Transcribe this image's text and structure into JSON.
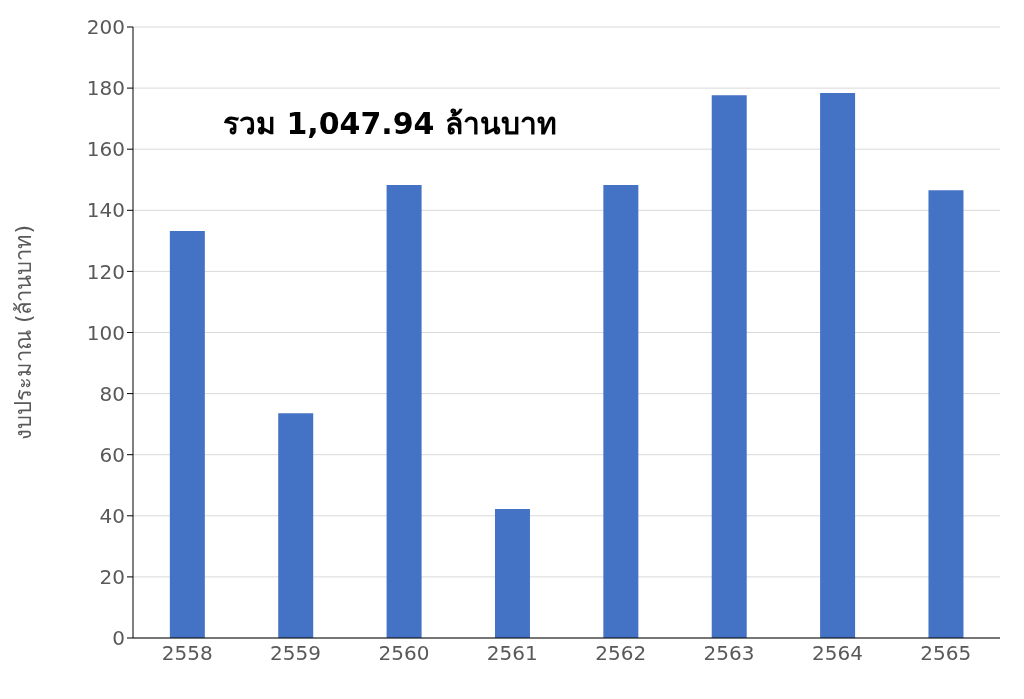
{
  "chart_data": {
    "type": "bar",
    "ylabel": "งบประมาณ (ล้านบาท)",
    "categories": [
      "2558",
      "2559",
      "2560",
      "2561",
      "2562",
      "2563",
      "2564",
      "2565"
    ],
    "values": [
      133.2,
      73.6,
      148.3,
      42.2,
      148.3,
      177.7,
      178.4,
      146.6
    ],
    "color": "#4472c4",
    "ylim": [
      0,
      200
    ],
    "yticks": [
      0,
      20,
      40,
      60,
      80,
      100,
      120,
      140,
      160,
      180,
      200
    ],
    "grid": "y",
    "annotations": [
      "รวม 1,047.94 ล้านบาท"
    ]
  }
}
